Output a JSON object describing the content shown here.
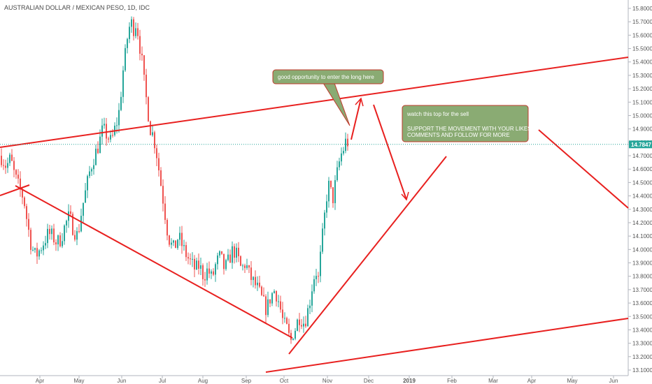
{
  "chart_data": {
    "type": "candlestick",
    "title": "AUSTRALIAN DOLLAR / MEXICAN PESO, 1D, IDC",
    "ylim": [
      13.05,
      15.85
    ],
    "y_ticks": [
      "15.8000",
      "15.7000",
      "15.6000",
      "15.5000",
      "15.4000",
      "15.3000",
      "15.2000",
      "15.1000",
      "15.0000",
      "14.9000",
      "14.8000",
      "14.7000",
      "14.6000",
      "14.5000",
      "14.4000",
      "14.3000",
      "14.2000",
      "14.1000",
      "14.0000",
      "13.9000",
      "13.8000",
      "13.7000",
      "13.6000",
      "13.5000",
      "13.4000",
      "13.3000",
      "13.2000",
      "13.1000"
    ],
    "x_ticks": [
      "Apr",
      "May",
      "Jun",
      "Jul",
      "Aug",
      "Sep",
      "Oct",
      "Nov",
      "Dec",
      "2019",
      "Feb",
      "Mar",
      "Apr",
      "May",
      "Jun"
    ],
    "last_price": "14.7847",
    "bullish_color": "#26a69a",
    "bearish_color": "#ef5350",
    "drawing_color": "#e8201f",
    "price_path": [
      [
        0,
        14.7
      ],
      [
        8,
        14.62
      ],
      [
        14,
        14.68
      ],
      [
        20,
        14.55
      ],
      [
        27,
        14.45
      ],
      [
        33,
        14.38
      ],
      [
        38,
        14.2
      ],
      [
        44,
        14.02
      ],
      [
        50,
        13.95
      ],
      [
        56,
        14.0
      ],
      [
        62,
        14.06
      ],
      [
        68,
        14.12
      ],
      [
        74,
        14.1
      ],
      [
        80,
        14.05
      ],
      [
        86,
        14.08
      ],
      [
        92,
        14.18
      ],
      [
        98,
        14.25
      ],
      [
        104,
        14.15
      ],
      [
        110,
        14.1
      ],
      [
        116,
        14.3
      ],
      [
        122,
        14.45
      ],
      [
        128,
        14.6
      ],
      [
        134,
        14.7
      ],
      [
        140,
        14.78
      ],
      [
        146,
        14.9
      ],
      [
        152,
        14.85
      ],
      [
        158,
        14.8
      ],
      [
        162,
        14.88
      ],
      [
        166,
        14.95
      ],
      [
        170,
        15.05
      ],
      [
        174,
        15.3
      ],
      [
        178,
        15.45
      ],
      [
        182,
        15.62
      ],
      [
        186,
        15.7
      ],
      [
        190,
        15.65
      ],
      [
        194,
        15.7
      ],
      [
        198,
        15.55
      ],
      [
        202,
        15.4
      ],
      [
        206,
        15.2
      ],
      [
        210,
        15.05
      ],
      [
        214,
        14.9
      ],
      [
        218,
        14.85
      ],
      [
        222,
        14.75
      ],
      [
        226,
        14.6
      ],
      [
        230,
        14.45
      ],
      [
        234,
        14.3
      ],
      [
        238,
        14.15
      ],
      [
        242,
        14.05
      ],
      [
        248,
        14.0
      ],
      [
        254,
        14.1
      ],
      [
        260,
        14.02
      ],
      [
        266,
        13.95
      ],
      [
        272,
        13.9
      ],
      [
        278,
        13.85
      ],
      [
        284,
        13.88
      ],
      [
        290,
        13.8
      ],
      [
        296,
        13.85
      ],
      [
        302,
        13.78
      ],
      [
        308,
        13.9
      ],
      [
        314,
        13.95
      ],
      [
        320,
        13.85
      ],
      [
        326,
        13.92
      ],
      [
        332,
        14.0
      ],
      [
        338,
        13.95
      ],
      [
        344,
        13.85
      ],
      [
        350,
        13.9
      ],
      [
        356,
        13.8
      ],
      [
        362,
        13.75
      ],
      [
        368,
        13.7
      ],
      [
        374,
        13.62
      ],
      [
        380,
        13.55
      ],
      [
        386,
        13.65
      ],
      [
        392,
        13.7
      ],
      [
        398,
        13.6
      ],
      [
        404,
        13.45
      ],
      [
        410,
        13.4
      ],
      [
        414,
        13.3
      ],
      [
        418,
        13.38
      ],
      [
        422,
        13.42
      ],
      [
        426,
        13.5
      ],
      [
        430,
        13.48
      ],
      [
        434,
        13.45
      ],
      [
        438,
        13.52
      ],
      [
        442,
        13.62
      ],
      [
        446,
        13.75
      ],
      [
        450,
        13.85
      ],
      [
        454,
        13.78
      ],
      [
        458,
        14.0
      ],
      [
        462,
        14.2
      ],
      [
        466,
        14.4
      ],
      [
        470,
        14.5
      ],
      [
        474,
        14.35
      ],
      [
        478,
        14.48
      ],
      [
        482,
        14.6
      ],
      [
        486,
        14.7
      ],
      [
        490,
        14.75
      ],
      [
        494,
        14.82
      ],
      [
        498,
        14.78
      ]
    ]
  },
  "annotations": {
    "long_note": "good opportunity to enter the long here",
    "sell_note_line1": "watch this top for the sell",
    "sell_note_line2": "SUPPORT THE MOVEMENT WITH YOUR LIKES,",
    "sell_note_line3": "COMMENTS AND FOLLOW FOR MORE",
    "callout_fill": "#8aab73",
    "callout_border": "#c0392b"
  }
}
